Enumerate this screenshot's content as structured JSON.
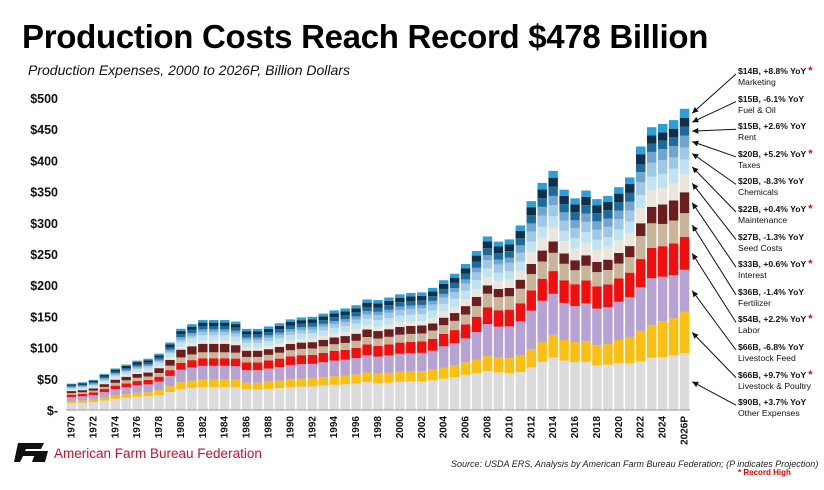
{
  "title": "Production Costs Reach Record $478 Billion",
  "subtitle": "Production Expenses, 2000 to 2026P, Billion Dollars",
  "organization": "American Farm Bureau Federation",
  "logo_text": "FB",
  "source": "Source: USDA ERS, Analysis by American Farm Bureau Federation; (P indicates Projection)",
  "record_note": "* Record High",
  "chart_data": {
    "type": "bar",
    "stacked": true,
    "title": "Production Costs Reach Record $478 Billion",
    "subtitle": "Production Expenses, 2000 to 2026P, Billion Dollars",
    "xlabel": "",
    "ylabel": "Billion Dollars",
    "ylim": [
      0,
      500
    ],
    "yticks": [
      0,
      50,
      100,
      150,
      200,
      250,
      300,
      350,
      400,
      450,
      500
    ],
    "ytick_labels": [
      "$-",
      "$50",
      "$100",
      "$150",
      "$200",
      "$250",
      "$300",
      "$350",
      "$400",
      "$450",
      "$500"
    ],
    "xtick_labels": [
      "1970",
      "1972",
      "1974",
      "1976",
      "1978",
      "1980",
      "1982",
      "1984",
      "1986",
      "1988",
      "1990",
      "1992",
      "1994",
      "1996",
      "1998",
      "2000",
      "2002",
      "2004",
      "2006",
      "2008",
      "2010",
      "2012",
      "2014",
      "2016",
      "2018",
      "2020",
      "2022",
      "2024",
      "2026P"
    ],
    "categories": [
      "1970",
      "1971",
      "1972",
      "1973",
      "1974",
      "1975",
      "1976",
      "1977",
      "1978",
      "1979",
      "1980",
      "1981",
      "1982",
      "1983",
      "1984",
      "1985",
      "1986",
      "1987",
      "1988",
      "1989",
      "1990",
      "1991",
      "1992",
      "1993",
      "1994",
      "1995",
      "1996",
      "1997",
      "1998",
      "1999",
      "2000",
      "2001",
      "2002",
      "2003",
      "2004",
      "2005",
      "2006",
      "2007",
      "2008",
      "2009",
      "2010",
      "2011",
      "2012",
      "2013",
      "2014",
      "2015",
      "2016",
      "2017",
      "2018",
      "2019",
      "2020",
      "2021",
      "2022",
      "2023",
      "2024",
      "2025",
      "2026P"
    ],
    "totals": [
      41,
      43,
      47,
      56,
      64,
      70,
      76,
      79,
      86,
      103,
      124,
      131,
      136,
      136,
      136,
      135,
      125,
      125,
      130,
      135,
      141,
      144,
      145,
      150,
      155,
      158,
      163,
      172,
      171,
      175,
      180,
      182,
      183,
      190,
      200,
      210,
      225,
      245,
      270,
      262,
      268,
      290,
      325,
      350,
      365,
      330,
      320,
      335,
      325,
      330,
      340,
      355,
      410,
      440,
      445,
      460,
      478
    ],
    "series": [
      {
        "name": "Other Expenses",
        "color": "#dcdcdc",
        "shares": [
          0.27,
          0.27,
          0.27,
          0.27,
          0.28,
          0.28,
          0.28,
          0.28,
          0.28,
          0.28,
          0.27,
          0.27,
          0.27,
          0.27,
          0.27,
          0.27,
          0.26,
          0.26,
          0.26,
          0.26,
          0.26,
          0.26,
          0.26,
          0.26,
          0.26,
          0.26,
          0.26,
          0.26,
          0.25,
          0.25,
          0.25,
          0.25,
          0.25,
          0.25,
          0.25,
          0.25,
          0.25,
          0.24,
          0.23,
          0.23,
          0.22,
          0.21,
          0.21,
          0.22,
          0.23,
          0.24,
          0.24,
          0.23,
          0.22,
          0.22,
          0.22,
          0.21,
          0.19,
          0.19,
          0.19,
          0.19,
          0.19
        ]
      },
      {
        "name": "Livestock & Poultry",
        "color": "#fbbf14",
        "shares": [
          0.08,
          0.08,
          0.08,
          0.08,
          0.08,
          0.08,
          0.08,
          0.08,
          0.09,
          0.09,
          0.09,
          0.09,
          0.09,
          0.09,
          0.09,
          0.09,
          0.09,
          0.09,
          0.09,
          0.09,
          0.09,
          0.09,
          0.09,
          0.09,
          0.09,
          0.09,
          0.09,
          0.09,
          0.09,
          0.09,
          0.09,
          0.09,
          0.09,
          0.09,
          0.09,
          0.09,
          0.09,
          0.09,
          0.09,
          0.09,
          0.09,
          0.09,
          0.09,
          0.09,
          0.1,
          0.1,
          0.1,
          0.1,
          0.1,
          0.1,
          0.11,
          0.12,
          0.12,
          0.12,
          0.13,
          0.13,
          0.14
        ]
      },
      {
        "name": "Livestock Feed",
        "color": "#b6a3d3",
        "shares": [
          0.16,
          0.16,
          0.16,
          0.16,
          0.16,
          0.16,
          0.16,
          0.16,
          0.16,
          0.16,
          0.16,
          0.16,
          0.16,
          0.16,
          0.16,
          0.16,
          0.16,
          0.16,
          0.16,
          0.16,
          0.16,
          0.16,
          0.16,
          0.16,
          0.16,
          0.16,
          0.16,
          0.16,
          0.16,
          0.16,
          0.16,
          0.16,
          0.16,
          0.16,
          0.17,
          0.17,
          0.17,
          0.18,
          0.19,
          0.19,
          0.19,
          0.19,
          0.19,
          0.19,
          0.18,
          0.18,
          0.18,
          0.18,
          0.18,
          0.18,
          0.18,
          0.18,
          0.17,
          0.17,
          0.16,
          0.15,
          0.14
        ]
      },
      {
        "name": "Labor",
        "color": "#f00e0e",
        "shares": [
          0.09,
          0.09,
          0.09,
          0.09,
          0.09,
          0.09,
          0.09,
          0.09,
          0.09,
          0.09,
          0.09,
          0.09,
          0.09,
          0.09,
          0.09,
          0.09,
          0.1,
          0.1,
          0.1,
          0.1,
          0.1,
          0.1,
          0.1,
          0.1,
          0.1,
          0.1,
          0.1,
          0.1,
          0.1,
          0.1,
          0.1,
          0.1,
          0.1,
          0.1,
          0.1,
          0.1,
          0.1,
          0.1,
          0.1,
          0.1,
          0.1,
          0.1,
          0.1,
          0.1,
          0.1,
          0.11,
          0.11,
          0.11,
          0.11,
          0.11,
          0.11,
          0.11,
          0.11,
          0.11,
          0.11,
          0.11,
          0.11
        ]
      },
      {
        "name": "Fertilizer",
        "color": "#c8b59a",
        "shares": [
          0.06,
          0.06,
          0.06,
          0.06,
          0.07,
          0.07,
          0.07,
          0.07,
          0.07,
          0.07,
          0.07,
          0.07,
          0.07,
          0.07,
          0.07,
          0.07,
          0.07,
          0.07,
          0.07,
          0.07,
          0.07,
          0.07,
          0.07,
          0.07,
          0.07,
          0.07,
          0.07,
          0.07,
          0.07,
          0.07,
          0.07,
          0.07,
          0.07,
          0.07,
          0.07,
          0.07,
          0.07,
          0.07,
          0.08,
          0.08,
          0.08,
          0.08,
          0.08,
          0.08,
          0.08,
          0.08,
          0.07,
          0.07,
          0.07,
          0.07,
          0.07,
          0.07,
          0.09,
          0.09,
          0.08,
          0.08,
          0.08
        ]
      },
      {
        "name": "Interest",
        "color": "#6b1e1e",
        "shares": [
          0.08,
          0.08,
          0.08,
          0.08,
          0.08,
          0.08,
          0.08,
          0.08,
          0.09,
          0.09,
          0.1,
          0.1,
          0.1,
          0.1,
          0.1,
          0.09,
          0.08,
          0.08,
          0.07,
          0.07,
          0.07,
          0.07,
          0.07,
          0.07,
          0.07,
          0.07,
          0.07,
          0.07,
          0.07,
          0.07,
          0.07,
          0.07,
          0.07,
          0.06,
          0.06,
          0.06,
          0.06,
          0.06,
          0.05,
          0.05,
          0.05,
          0.05,
          0.05,
          0.05,
          0.05,
          0.05,
          0.05,
          0.05,
          0.05,
          0.05,
          0.05,
          0.05,
          0.05,
          0.06,
          0.07,
          0.07,
          0.07
        ]
      },
      {
        "name": "Seed Costs",
        "color": "#ebe6dc",
        "shares": [
          0.04,
          0.04,
          0.04,
          0.04,
          0.04,
          0.04,
          0.04,
          0.04,
          0.04,
          0.04,
          0.04,
          0.04,
          0.04,
          0.04,
          0.04,
          0.04,
          0.04,
          0.04,
          0.04,
          0.04,
          0.04,
          0.04,
          0.04,
          0.04,
          0.04,
          0.04,
          0.04,
          0.04,
          0.04,
          0.04,
          0.04,
          0.04,
          0.04,
          0.05,
          0.05,
          0.05,
          0.05,
          0.05,
          0.05,
          0.05,
          0.05,
          0.05,
          0.06,
          0.06,
          0.06,
          0.06,
          0.06,
          0.06,
          0.06,
          0.06,
          0.06,
          0.06,
          0.06,
          0.06,
          0.06,
          0.06,
          0.06
        ]
      },
      {
        "name": "Maintenance",
        "color": "#bfe3f0",
        "shares": [
          0.06,
          0.06,
          0.06,
          0.06,
          0.06,
          0.06,
          0.06,
          0.06,
          0.06,
          0.06,
          0.06,
          0.06,
          0.06,
          0.06,
          0.06,
          0.06,
          0.06,
          0.06,
          0.06,
          0.06,
          0.06,
          0.06,
          0.06,
          0.06,
          0.06,
          0.06,
          0.06,
          0.06,
          0.06,
          0.06,
          0.06,
          0.06,
          0.06,
          0.06,
          0.06,
          0.06,
          0.06,
          0.06,
          0.05,
          0.05,
          0.05,
          0.05,
          0.05,
          0.05,
          0.05,
          0.05,
          0.05,
          0.05,
          0.05,
          0.05,
          0.05,
          0.05,
          0.05,
          0.05,
          0.05,
          0.05,
          0.05
        ]
      },
      {
        "name": "Chemicals",
        "color": "#9ec8e6",
        "shares": [
          0.03,
          0.03,
          0.03,
          0.03,
          0.03,
          0.03,
          0.03,
          0.03,
          0.03,
          0.03,
          0.03,
          0.03,
          0.04,
          0.04,
          0.04,
          0.04,
          0.04,
          0.04,
          0.04,
          0.04,
          0.04,
          0.04,
          0.04,
          0.04,
          0.04,
          0.04,
          0.04,
          0.04,
          0.05,
          0.05,
          0.05,
          0.05,
          0.05,
          0.05,
          0.05,
          0.05,
          0.05,
          0.05,
          0.05,
          0.05,
          0.05,
          0.05,
          0.05,
          0.05,
          0.05,
          0.05,
          0.05,
          0.05,
          0.05,
          0.05,
          0.05,
          0.05,
          0.05,
          0.05,
          0.05,
          0.04,
          0.04
        ]
      },
      {
        "name": "Taxes",
        "color": "#6fa5d0",
        "shares": [
          0.04,
          0.04,
          0.04,
          0.04,
          0.03,
          0.03,
          0.03,
          0.03,
          0.03,
          0.03,
          0.03,
          0.03,
          0.03,
          0.03,
          0.03,
          0.03,
          0.03,
          0.03,
          0.03,
          0.03,
          0.03,
          0.03,
          0.03,
          0.03,
          0.03,
          0.03,
          0.03,
          0.03,
          0.03,
          0.03,
          0.03,
          0.03,
          0.03,
          0.03,
          0.03,
          0.03,
          0.03,
          0.03,
          0.03,
          0.03,
          0.03,
          0.04,
          0.04,
          0.04,
          0.04,
          0.04,
          0.04,
          0.04,
          0.04,
          0.04,
          0.04,
          0.04,
          0.04,
          0.04,
          0.04,
          0.04,
          0.04
        ]
      },
      {
        "name": "Rent",
        "color": "#1c6b9c",
        "shares": [
          0.04,
          0.04,
          0.04,
          0.04,
          0.04,
          0.04,
          0.04,
          0.04,
          0.04,
          0.04,
          0.04,
          0.04,
          0.04,
          0.04,
          0.04,
          0.04,
          0.04,
          0.04,
          0.04,
          0.04,
          0.04,
          0.04,
          0.04,
          0.04,
          0.04,
          0.04,
          0.04,
          0.04,
          0.04,
          0.04,
          0.04,
          0.04,
          0.04,
          0.04,
          0.04,
          0.04,
          0.04,
          0.04,
          0.04,
          0.04,
          0.04,
          0.04,
          0.04,
          0.04,
          0.04,
          0.04,
          0.04,
          0.04,
          0.04,
          0.04,
          0.04,
          0.04,
          0.03,
          0.03,
          0.03,
          0.03,
          0.03
        ]
      },
      {
        "name": "Fuel & Oil",
        "color": "#0f2f4a",
        "shares": [
          0.05,
          0.05,
          0.05,
          0.05,
          0.05,
          0.05,
          0.05,
          0.05,
          0.04,
          0.04,
          0.04,
          0.04,
          0.04,
          0.04,
          0.04,
          0.04,
          0.04,
          0.04,
          0.04,
          0.04,
          0.04,
          0.04,
          0.04,
          0.04,
          0.04,
          0.04,
          0.04,
          0.04,
          0.04,
          0.04,
          0.04,
          0.04,
          0.04,
          0.04,
          0.04,
          0.04,
          0.04,
          0.04,
          0.04,
          0.04,
          0.04,
          0.04,
          0.04,
          0.04,
          0.04,
          0.04,
          0.04,
          0.04,
          0.04,
          0.04,
          0.04,
          0.04,
          0.04,
          0.03,
          0.03,
          0.03,
          0.03
        ]
      },
      {
        "name": "Marketing",
        "color": "#2b9fd6",
        "shares": [
          0.03,
          0.03,
          0.03,
          0.03,
          0.03,
          0.03,
          0.03,
          0.03,
          0.03,
          0.03,
          0.03,
          0.03,
          0.03,
          0.03,
          0.03,
          0.03,
          0.03,
          0.03,
          0.03,
          0.03,
          0.03,
          0.03,
          0.03,
          0.03,
          0.03,
          0.03,
          0.03,
          0.03,
          0.03,
          0.03,
          0.03,
          0.03,
          0.03,
          0.03,
          0.03,
          0.03,
          0.03,
          0.03,
          0.03,
          0.03,
          0.03,
          0.03,
          0.03,
          0.03,
          0.03,
          0.03,
          0.03,
          0.03,
          0.03,
          0.03,
          0.03,
          0.03,
          0.03,
          0.03,
          0.03,
          0.03,
          0.03
        ]
      }
    ],
    "annotations": [
      {
        "category": "Marketing",
        "value": "$14B, +8.8% YoY",
        "record": true
      },
      {
        "category": "Fuel & Oil",
        "value": "$15B, -6.1% YoY",
        "record": false
      },
      {
        "category": "Rent",
        "value": "$15B, +2.6% YoY",
        "record": false
      },
      {
        "category": "Taxes",
        "value": "$20B, +5.2% YoY",
        "record": true
      },
      {
        "category": "Chemicals",
        "value": "$20B, -8.3% YoY",
        "record": false
      },
      {
        "category": "Maintenance",
        "value": "$22B, +0.4% YoY",
        "record": true
      },
      {
        "category": "Seed Costs",
        "value": "$27B, -1.3% YoY",
        "record": false
      },
      {
        "category": "Interest",
        "value": "$33B, +0.6% YoY",
        "record": true
      },
      {
        "category": "Fertilizer",
        "value": "$36B, -1.4% YoY",
        "record": false
      },
      {
        "category": "Labor",
        "value": "$54B, +2.2% YoY",
        "record": true
      },
      {
        "category": "Livestock Feed",
        "value": "$66B, -6.8% YoY",
        "record": false
      },
      {
        "category": "Livestock & Poultry",
        "value": "$66B, +9.7% YoY",
        "record": true
      },
      {
        "category": "Other Expenses",
        "value": "$90B, +3.7% YoY",
        "record": false
      }
    ]
  }
}
